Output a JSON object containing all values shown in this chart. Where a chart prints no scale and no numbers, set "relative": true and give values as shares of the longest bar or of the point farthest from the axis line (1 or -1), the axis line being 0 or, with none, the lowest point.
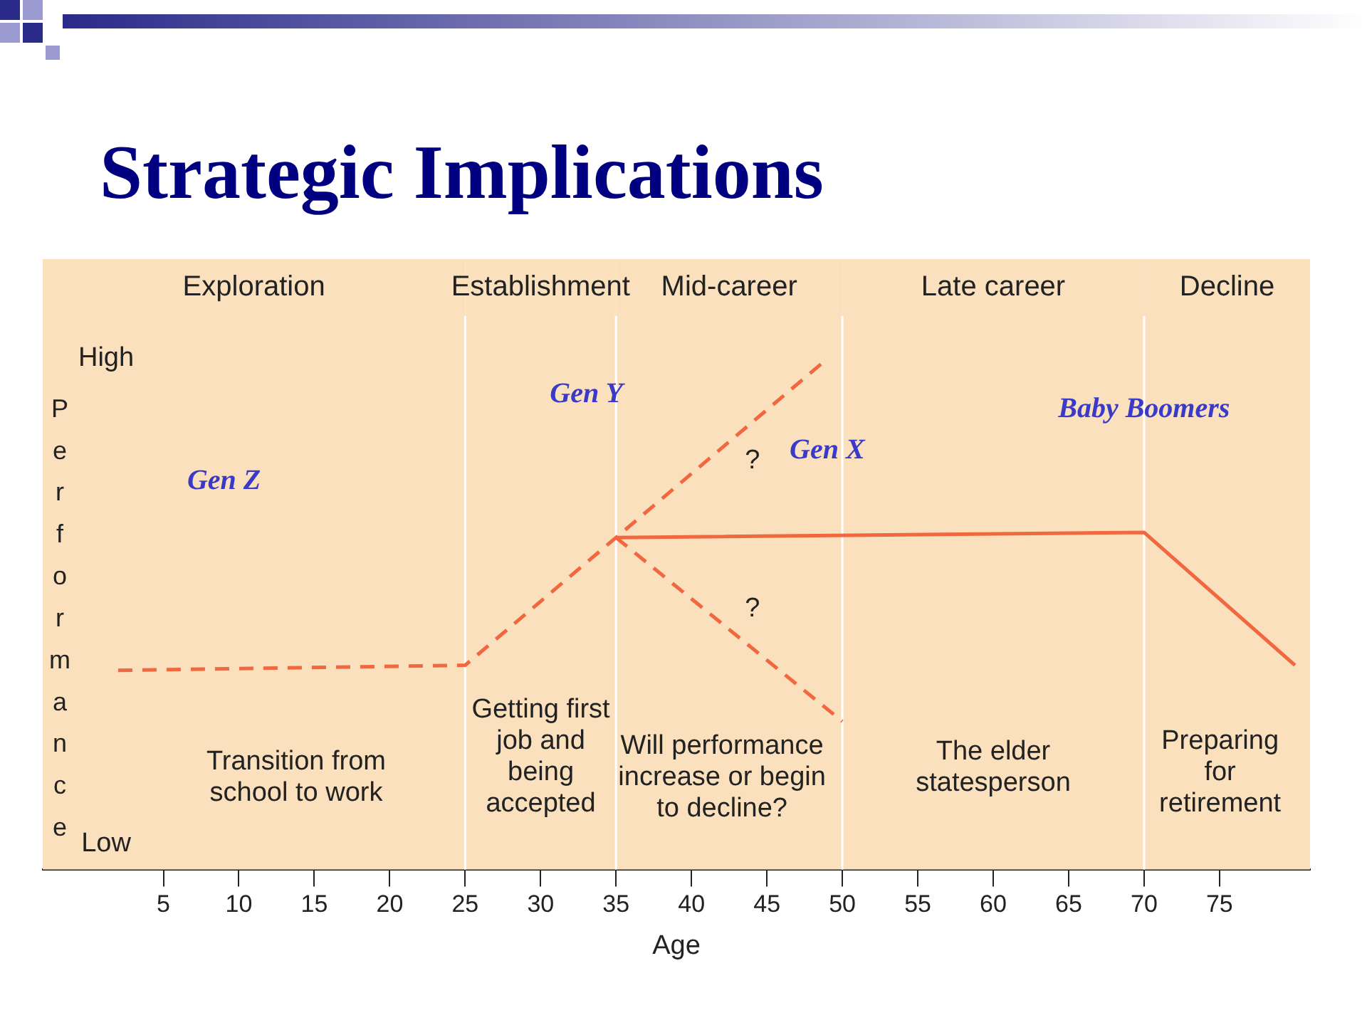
{
  "chart_data": {
    "type": "line",
    "title": "Strategic Implications",
    "xlabel": "Age",
    "ylabel": "Performance",
    "relative": true,
    "xlim": [
      -3,
      81
    ],
    "xticks": [
      5,
      10,
      15,
      20,
      25,
      30,
      35,
      40,
      45,
      50,
      55,
      60,
      65,
      70,
      75
    ],
    "series": [
      {
        "color": "#f0683f",
        "line_style": "dashed",
        "x": [
          2,
          25,
          35,
          49
        ],
        "values": [
          0.39,
          0.4,
          0.65,
          1
        ]
      },
      {
        "color": "#f0683f",
        "line_style": "dashed",
        "x": [
          35,
          50
        ],
        "values": [
          0.65,
          0.29
        ]
      },
      {
        "color": "#f0683f",
        "line_style": "solid",
        "x": [
          35,
          70,
          80
        ],
        "values": [
          0.65,
          0.66,
          0.4
        ]
      }
    ],
    "bands": [
      {
        "axis": "x",
        "from": -3,
        "to": 25,
        "label": "Exploration",
        "color": "#fbe0bd"
      },
      {
        "axis": "x",
        "from": 25,
        "to": 35,
        "label": "Establishment",
        "color": "#fbe0bd"
      },
      {
        "axis": "x",
        "from": 35,
        "to": 50,
        "label": "Mid-career",
        "color": "#fbe0bd"
      },
      {
        "axis": "x",
        "from": 50,
        "to": 70,
        "label": "Late career",
        "color": "#fbe0bd"
      },
      {
        "axis": "x",
        "from": 70,
        "to": 81,
        "label": "Decline",
        "color": "#fbe0bd"
      }
    ],
    "ref_lines": [
      {
        "axis": "x",
        "value": 25,
        "color": "#ffffff"
      },
      {
        "axis": "x",
        "value": 35,
        "color": "#ffffff"
      },
      {
        "axis": "x",
        "value": 50,
        "color": "#ffffff"
      },
      {
        "axis": "x",
        "value": 70,
        "color": "#ffffff"
      }
    ],
    "annotations": [
      "High",
      "Low",
      "Transition from\nschool to work",
      "Getting first\njob and\nbeing\naccepted",
      "Will performance\nincrease or begin\nto decline?",
      "The elder\nstatesperson",
      "Preparing\nfor\nretirement",
      "?",
      "?",
      "Gen Z",
      "Gen Y",
      "Gen X",
      "Baby Boomers"
    ]
  }
}
